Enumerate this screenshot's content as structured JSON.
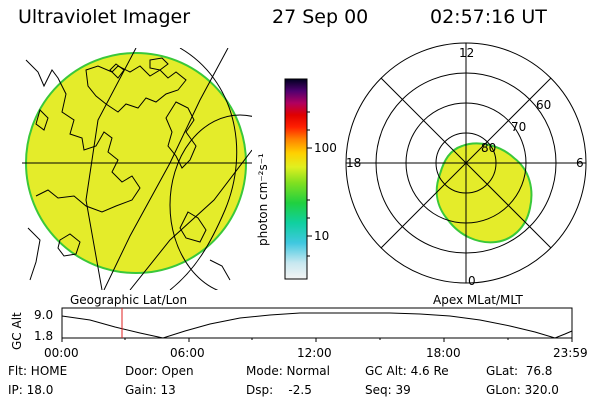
{
  "header": {
    "title": "Ultraviolet Imager",
    "date": "27 Sep 00",
    "time": "02:57:16 UT"
  },
  "colorbar": {
    "unit_label": "photon cm⁻²s⁻¹",
    "tick_100": "100",
    "tick_10": "10"
  },
  "left_panel": {
    "caption": "Geographic Lat/Lon"
  },
  "right_panel": {
    "caption": "Apex MLat/MLT",
    "mlt_labels": {
      "top": "12",
      "left": "18",
      "right": "6",
      "bottom": "0"
    },
    "lat_labels": [
      "80",
      "70",
      "60"
    ]
  },
  "altitude_plot": {
    "ylabel": "GC Alt",
    "y_ticks": [
      "9.0",
      "1.8"
    ],
    "x_ticks": [
      "00:00",
      "06:00",
      "12:00",
      "18:00",
      "23:59"
    ]
  },
  "status": {
    "flt": "Flt: HOME",
    "door": "Door: Open",
    "mode": "Mode: Normal",
    "gcalt": "GC Alt: 4.6 Re",
    "glat": "GLat:  76.8",
    "ip": "IP: 18.0",
    "gain": "Gain: 13",
    "dsp": "Dsp:    -2.5",
    "seq": "Seq: 39",
    "glon": "GLon: 320.0"
  }
}
